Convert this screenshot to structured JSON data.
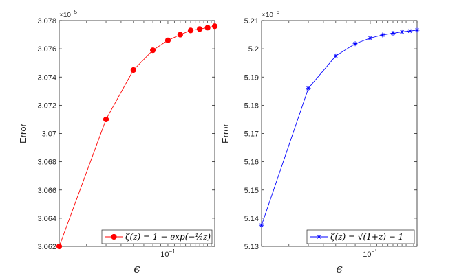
{
  "chart_data": [
    {
      "type": "line",
      "x_scale": "log",
      "xlabel": "ϵ",
      "ylabel": "Error",
      "y_multiplier": "×10^-5",
      "x_tick_labels": [
        "10^-1"
      ],
      "xlim": [
        0.02,
        0.2
      ],
      "ylim": [
        3.062,
        3.078
      ],
      "y_ticks": [
        "3.062",
        "3.064",
        "3.066",
        "3.068",
        "3.07",
        "3.072",
        "3.074",
        "3.076",
        "3.078"
      ],
      "grid": false,
      "legend_position": "bottom-right",
      "series": [
        {
          "name": "ζ(z) = 1 − exp(−½z)",
          "color": "#ff0000",
          "marker": "filled-circle",
          "x": [
            0.02,
            0.04,
            0.06,
            0.08,
            0.1,
            0.12,
            0.14,
            0.16,
            0.18,
            0.2
          ],
          "y": [
            3.062,
            3.071,
            3.0745,
            3.0759,
            3.0766,
            3.077,
            3.0773,
            3.0774,
            3.0775,
            3.0776
          ]
        }
      ]
    },
    {
      "type": "line",
      "x_scale": "log",
      "xlabel": "ϵ",
      "ylabel": "Error",
      "y_multiplier": "×10^-5",
      "x_tick_labels": [
        "10^-1"
      ],
      "xlim": [
        0.02,
        0.2
      ],
      "ylim": [
        5.13,
        5.21
      ],
      "y_ticks": [
        "5.13",
        "5.14",
        "5.15",
        "5.16",
        "5.17",
        "5.18",
        "5.19",
        "5.2",
        "5.21"
      ],
      "grid": false,
      "legend_position": "bottom-right",
      "series": [
        {
          "name": "ζ(z) = √(1+z) − 1",
          "color": "#0000ff",
          "marker": "asterisk",
          "x": [
            0.02,
            0.04,
            0.06,
            0.08,
            0.1,
            0.12,
            0.14,
            0.16,
            0.18,
            0.2
          ],
          "y": [
            5.1375,
            5.186,
            5.1975,
            5.2018,
            5.2038,
            5.2049,
            5.2055,
            5.206,
            5.2063,
            5.2066
          ]
        }
      ]
    }
  ]
}
